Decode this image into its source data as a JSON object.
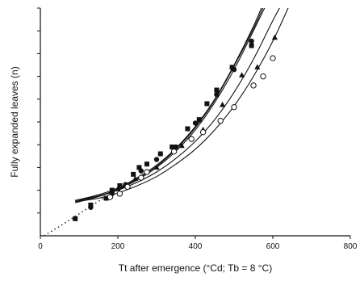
{
  "chart_data": {
    "type": "scatter",
    "title": "",
    "xlabel": "Tt after emergence (°Cd; Tb = 8 °C)",
    "ylabel": "Fully expanded leaves (n)",
    "xlim": [
      0,
      800
    ],
    "ylim": [
      0,
      10
    ],
    "x_ticks": [
      0,
      200,
      400,
      600,
      800
    ],
    "x_tick_labels": [
      "0",
      "200",
      "400",
      "600",
      "800"
    ],
    "y_ticks": [
      1,
      2,
      3,
      4,
      5,
      6,
      7,
      8,
      9,
      10
    ],
    "y_tick_labels": [],
    "grid": false,
    "series": [
      {
        "marker": "square-filled",
        "points": [
          [
            90,
            0.75
          ],
          [
            130,
            1.35
          ],
          [
            170,
            1.65
          ],
          [
            185,
            2.0
          ],
          [
            205,
            2.2
          ],
          [
            240,
            2.7
          ],
          [
            255,
            3.0
          ],
          [
            275,
            3.15
          ],
          [
            310,
            3.6
          ],
          [
            340,
            3.9
          ],
          [
            380,
            4.7
          ],
          [
            410,
            5.1
          ],
          [
            430,
            5.8
          ],
          [
            455,
            6.4
          ],
          [
            495,
            7.4
          ],
          [
            545,
            8.35
          ]
        ]
      },
      {
        "marker": "circle-filled",
        "points": [
          [
            130,
            1.25
          ],
          [
            185,
            1.85
          ],
          [
            220,
            2.25
          ],
          [
            260,
            2.85
          ],
          [
            300,
            3.35
          ],
          [
            350,
            3.9
          ],
          [
            400,
            4.95
          ],
          [
            455,
            6.2
          ],
          [
            500,
            7.3
          ],
          [
            545,
            8.55
          ]
        ]
      },
      {
        "marker": "triangle-filled",
        "points": [
          [
            200,
            2.05
          ],
          [
            245,
            2.5
          ],
          [
            300,
            3.0
          ],
          [
            365,
            3.95
          ],
          [
            420,
            4.65
          ],
          [
            470,
            5.75
          ],
          [
            520,
            7.05
          ],
          [
            560,
            7.4
          ],
          [
            605,
            8.7
          ]
        ]
      },
      {
        "marker": "circle-open",
        "points": [
          [
            180,
            1.7
          ],
          [
            205,
            1.85
          ],
          [
            225,
            2.15
          ],
          [
            260,
            2.55
          ],
          [
            275,
            2.8
          ],
          [
            345,
            3.7
          ],
          [
            390,
            4.25
          ],
          [
            420,
            4.55
          ],
          [
            465,
            5.05
          ],
          [
            500,
            5.65
          ],
          [
            550,
            6.6
          ],
          [
            575,
            7.0
          ],
          [
            600,
            7.8
          ]
        ]
      }
    ],
    "fitted_curves": [
      {
        "points": [
          [
            90,
            1.55
          ],
          [
            150,
            1.8
          ],
          [
            200,
            2.1
          ],
          [
            250,
            2.55
          ],
          [
            300,
            3.1
          ],
          [
            350,
            3.85
          ],
          [
            400,
            4.8
          ],
          [
            450,
            6.0
          ],
          [
            500,
            7.5
          ],
          [
            550,
            9.2
          ],
          [
            580,
            10.4
          ]
        ]
      },
      {
        "points": [
          [
            90,
            1.5
          ],
          [
            150,
            1.75
          ],
          [
            200,
            2.05
          ],
          [
            250,
            2.5
          ],
          [
            300,
            3.05
          ],
          [
            350,
            3.8
          ],
          [
            400,
            4.75
          ],
          [
            450,
            5.95
          ],
          [
            500,
            7.45
          ],
          [
            550,
            9.1
          ],
          [
            585,
            10.4
          ]
        ]
      },
      {
        "points": [
          [
            90,
            1.45
          ],
          [
            150,
            1.72
          ],
          [
            200,
            2.02
          ],
          [
            250,
            2.45
          ],
          [
            300,
            3.0
          ],
          [
            350,
            3.72
          ],
          [
            400,
            4.65
          ],
          [
            450,
            5.85
          ],
          [
            500,
            7.3
          ],
          [
            550,
            9.0
          ],
          [
            590,
            10.4
          ]
        ]
      },
      {
        "points": [
          [
            90,
            1.55
          ],
          [
            150,
            1.75
          ],
          [
            200,
            2.0
          ],
          [
            250,
            2.35
          ],
          [
            300,
            2.8
          ],
          [
            350,
            3.4
          ],
          [
            400,
            4.15
          ],
          [
            450,
            5.1
          ],
          [
            500,
            6.3
          ],
          [
            550,
            7.75
          ],
          [
            600,
            9.45
          ],
          [
            630,
            10.4
          ]
        ]
      },
      {
        "points": [
          [
            90,
            1.5
          ],
          [
            150,
            1.65
          ],
          [
            200,
            1.88
          ],
          [
            250,
            2.2
          ],
          [
            300,
            2.6
          ],
          [
            350,
            3.15
          ],
          [
            400,
            3.8
          ],
          [
            450,
            4.65
          ],
          [
            500,
            5.7
          ],
          [
            550,
            7.0
          ],
          [
            600,
            8.55
          ],
          [
            650,
            10.4
          ]
        ]
      }
    ],
    "extrapolation": {
      "style": "dotted",
      "points": [
        [
          10,
          0
        ],
        [
          50,
          0.42
        ],
        [
          90,
          0.85
        ],
        [
          130,
          1.3
        ],
        [
          170,
          1.72
        ],
        [
          200,
          2.05
        ]
      ]
    }
  }
}
